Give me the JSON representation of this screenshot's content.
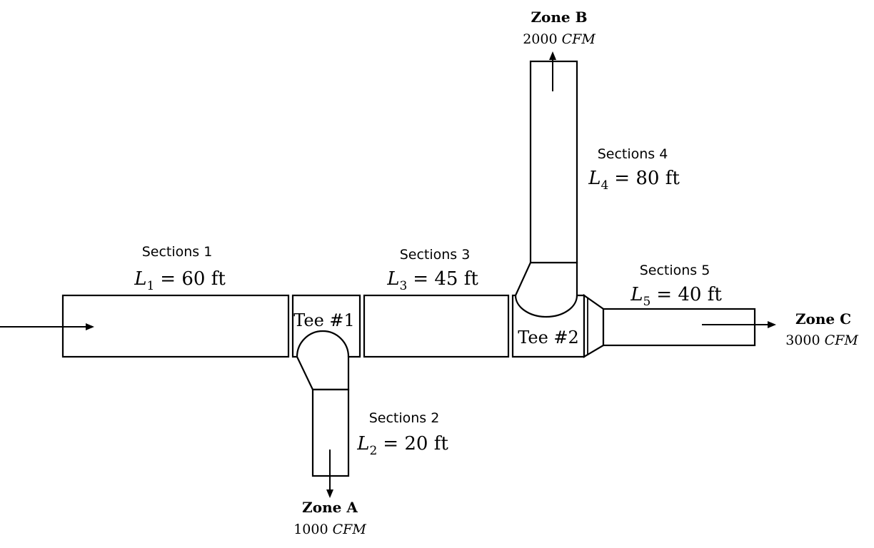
{
  "sections": [
    {
      "title": "Sections 1",
      "symbol": "L",
      "sub": "1",
      "rhs": "= 60 ft"
    },
    {
      "title": "Sections 2",
      "symbol": "L",
      "sub": "2",
      "rhs": "= 20 ft"
    },
    {
      "title": "Sections 3",
      "symbol": "L",
      "sub": "3",
      "rhs": "= 45 ft"
    },
    {
      "title": "Sections 4",
      "symbol": "L",
      "sub": "4",
      "rhs": "= 80 ft"
    },
    {
      "title": "Sections 5",
      "symbol": "L",
      "sub": "5",
      "rhs": "= 40 ft"
    }
  ],
  "tees": [
    {
      "label": "Tee #1"
    },
    {
      "label": "Tee #2"
    }
  ],
  "zones": [
    {
      "name": "Zone A",
      "flow": "1000",
      "unit": "CFM"
    },
    {
      "name": "Zone B",
      "flow": "2000",
      "unit": "CFM"
    },
    {
      "name": "Zone C",
      "flow": "3000",
      "unit": "CFM"
    }
  ]
}
